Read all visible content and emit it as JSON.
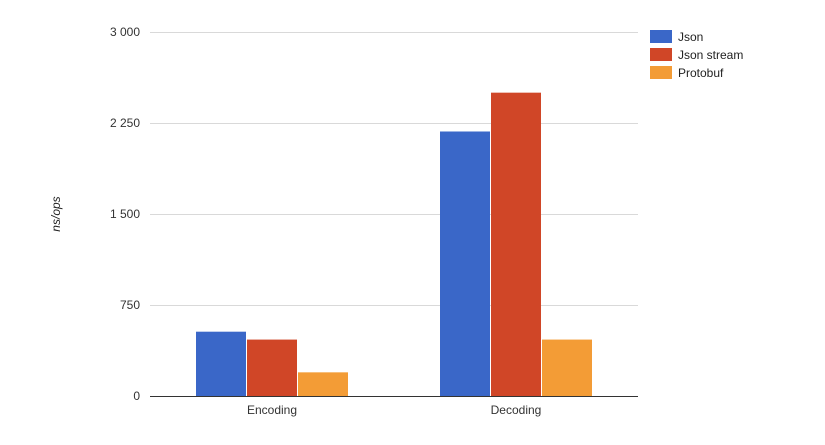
{
  "chart_data": {
    "type": "bar",
    "title": "",
    "xlabel": "",
    "ylabel": "ns/ops",
    "categories": [
      "Encoding",
      "Decoding"
    ],
    "series": [
      {
        "name": "Json",
        "color": "#3a67c8",
        "values": [
          530,
          2180
        ]
      },
      {
        "name": "Json stream",
        "color": "#d04627",
        "values": [
          465,
          2500
        ]
      },
      {
        "name": "Protobuf",
        "color": "#f39c36",
        "values": [
          195,
          465
        ]
      }
    ],
    "y_ticks": [
      0,
      750,
      1500,
      2250,
      3000
    ],
    "y_tick_labels": [
      "0",
      "750",
      "1 500",
      "2 250",
      "3 000"
    ],
    "ylim": [
      0,
      3000
    ],
    "grid": true,
    "legend_position": "right"
  }
}
